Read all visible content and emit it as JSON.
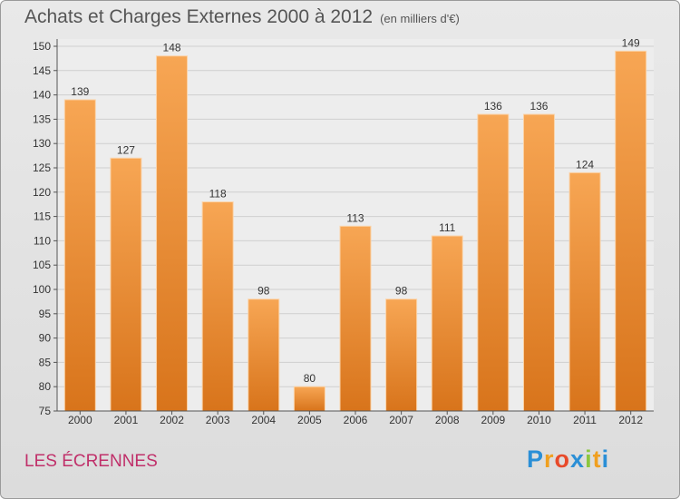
{
  "title": "Achats et Charges Externes 2000 à 2012",
  "subtitle": "(en milliers d'€)",
  "commune": "LES ÉCRENNES",
  "logo": {
    "letters": [
      "P",
      "r",
      "o",
      "x",
      "i",
      "t",
      "i"
    ],
    "colors": [
      "#2b8fd6",
      "#f0a020",
      "#e84a2a",
      "#2b8fd6",
      "#8cc63f",
      "#f0a020",
      "#2b8fd6"
    ]
  },
  "chart_data": {
    "type": "bar",
    "categories": [
      "2000",
      "2001",
      "2002",
      "2003",
      "2004",
      "2005",
      "2006",
      "2007",
      "2008",
      "2009",
      "2010",
      "2011",
      "2012"
    ],
    "values": [
      139,
      127,
      148,
      118,
      98,
      80,
      113,
      98,
      111,
      136,
      136,
      124,
      149
    ],
    "ylim": [
      75,
      150
    ],
    "yticks": [
      75,
      80,
      85,
      90,
      95,
      100,
      105,
      110,
      115,
      120,
      125,
      130,
      135,
      140,
      145,
      150
    ],
    "grid": true,
    "bar_color": "#f0902a",
    "title": "Achats et Charges Externes 2000 à 2012",
    "xlabel": "",
    "ylabel": ""
  }
}
